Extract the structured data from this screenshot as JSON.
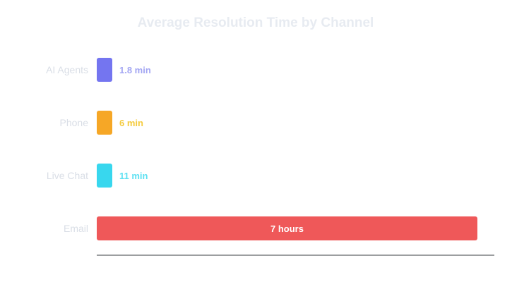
{
  "chart_data": {
    "type": "bar",
    "orientation": "horizontal",
    "title": "Average Resolution Time by Channel",
    "categories": [
      "AI Agents",
      "Phone",
      "Live Chat",
      "Email"
    ],
    "values_minutes": [
      1.8,
      6,
      11,
      420
    ],
    "value_labels": [
      "1.8 min",
      "6 min",
      "11 min",
      "7 hours"
    ],
    "colors": [
      "#7475f0",
      "#f6a726",
      "#38d7ee",
      "#ef5859"
    ],
    "label_colors": [
      "#a3a6f3",
      "#f4cb3e",
      "#5fe1f2",
      "#ffffff"
    ],
    "value_label_inside": [
      false,
      false,
      false,
      true
    ],
    "xlabel": "",
    "ylabel": "",
    "grid": false,
    "legend": "none"
  }
}
